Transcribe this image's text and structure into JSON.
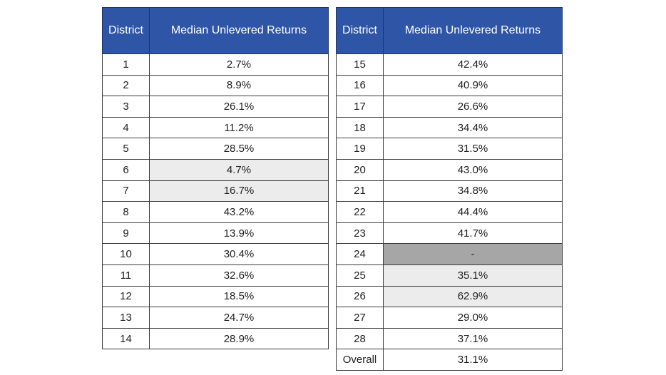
{
  "chart_data": {
    "type": "table",
    "columns": [
      "District",
      "Median Unlevered Returns"
    ],
    "colors": {
      "header_bg": "#2f56a6",
      "highlight_light": "#ececec",
      "highlight_dark": "#a6a6a6"
    },
    "tables": [
      {
        "rows": [
          {
            "district": "1",
            "value": "2.7%",
            "shade": ""
          },
          {
            "district": "2",
            "value": "8.9%",
            "shade": ""
          },
          {
            "district": "3",
            "value": "26.1%",
            "shade": ""
          },
          {
            "district": "4",
            "value": "11.2%",
            "shade": ""
          },
          {
            "district": "5",
            "value": "28.5%",
            "shade": ""
          },
          {
            "district": "6",
            "value": "4.7%",
            "shade": "light"
          },
          {
            "district": "7",
            "value": "16.7%",
            "shade": "light"
          },
          {
            "district": "8",
            "value": "43.2%",
            "shade": ""
          },
          {
            "district": "9",
            "value": "13.9%",
            "shade": ""
          },
          {
            "district": "10",
            "value": "30.4%",
            "shade": ""
          },
          {
            "district": "11",
            "value": "32.6%",
            "shade": ""
          },
          {
            "district": "12",
            "value": "18.5%",
            "shade": ""
          },
          {
            "district": "13",
            "value": "24.7%",
            "shade": ""
          },
          {
            "district": "14",
            "value": "28.9%",
            "shade": ""
          }
        ]
      },
      {
        "rows": [
          {
            "district": "15",
            "value": "42.4%",
            "shade": ""
          },
          {
            "district": "16",
            "value": "40.9%",
            "shade": ""
          },
          {
            "district": "17",
            "value": "26.6%",
            "shade": ""
          },
          {
            "district": "18",
            "value": "34.4%",
            "shade": ""
          },
          {
            "district": "19",
            "value": "31.5%",
            "shade": ""
          },
          {
            "district": "20",
            "value": "43.0%",
            "shade": ""
          },
          {
            "district": "21",
            "value": "34.8%",
            "shade": ""
          },
          {
            "district": "22",
            "value": "44.4%",
            "shade": ""
          },
          {
            "district": "23",
            "value": "41.7%",
            "shade": ""
          },
          {
            "district": "24",
            "value": "-",
            "shade": "dark"
          },
          {
            "district": "25",
            "value": "35.1%",
            "shade": "light"
          },
          {
            "district": "26",
            "value": "62.9%",
            "shade": "light"
          },
          {
            "district": "27",
            "value": "29.0%",
            "shade": ""
          },
          {
            "district": "28",
            "value": "37.1%",
            "shade": ""
          },
          {
            "district": "Overall",
            "value": "31.1%",
            "shade": ""
          }
        ]
      }
    ]
  }
}
